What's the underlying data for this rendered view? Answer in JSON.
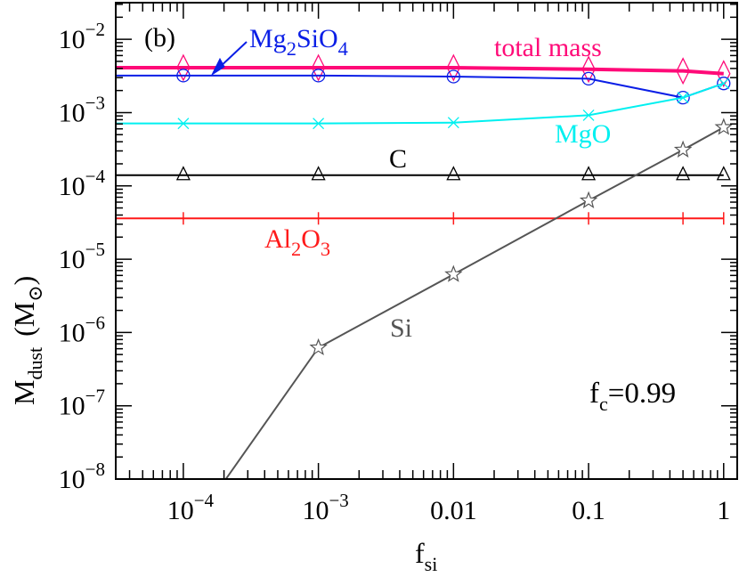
{
  "chart_data": {
    "type": "line",
    "panel_label": "(b)",
    "xlabel": {
      "main": "f",
      "sub": "si"
    },
    "ylabel": {
      "main": "M",
      "sub": "dust",
      "unit_open": "(M",
      "unit_sub": "⊙",
      "unit_close": ")"
    },
    "annotation": {
      "main": "f",
      "sub": "c",
      "rest": "=0.99"
    },
    "x_scale": "log",
    "y_scale": "log",
    "xlim": [
      3.16e-05,
      1.26
    ],
    "ylim": [
      1e-08,
      0.0316
    ],
    "grid": false,
    "x_ticks": [
      {
        "value": 0.0001,
        "base": "10",
        "exp": "−4"
      },
      {
        "value": 0.001,
        "base": "10",
        "exp": "−3"
      },
      {
        "value": 0.01,
        "base": "0.01",
        "exp": ""
      },
      {
        "value": 0.1,
        "base": "0.1",
        "exp": ""
      },
      {
        "value": 1,
        "base": "1",
        "exp": ""
      }
    ],
    "y_ticks": [
      {
        "value": 0.01,
        "base": "10",
        "exp": "−2"
      },
      {
        "value": 0.001,
        "base": "10",
        "exp": "−3"
      },
      {
        "value": 0.0001,
        "base": "10",
        "exp": "−4"
      },
      {
        "value": 1e-05,
        "base": "10",
        "exp": "−5"
      },
      {
        "value": 1e-06,
        "base": "10",
        "exp": "−6"
      },
      {
        "value": 1e-07,
        "base": "10",
        "exp": "−7"
      },
      {
        "value": 1e-08,
        "base": "10",
        "exp": "−8"
      }
    ],
    "x": [
      0.0001,
      0.001,
      0.01,
      0.1,
      0.5,
      1
    ],
    "series": [
      {
        "name": "total mass",
        "label_parts": [
          {
            "t": "total mass"
          }
        ],
        "color": "#ff0a78",
        "marker": "diamond",
        "line_width": 4,
        "values": [
          0.0041,
          0.0041,
          0.0041,
          0.0039,
          0.0037,
          0.0034
        ],
        "extend_left": true
      },
      {
        "name": "Mg2SiO4",
        "label_parts": [
          {
            "t": "Mg"
          },
          {
            "t": "2",
            "sub": true
          },
          {
            "t": "SiO"
          },
          {
            "t": "4",
            "sub": true
          }
        ],
        "color": "#0a1ee6",
        "marker": "circle",
        "line_width": 2,
        "values": [
          0.0032,
          0.0032,
          0.0031,
          0.0029,
          0.0016,
          0.0025
        ],
        "extend_left": true
      },
      {
        "name": "MgO",
        "label_parts": [
          {
            "t": "MgO"
          }
        ],
        "color": "#00f0f0",
        "marker": "cross",
        "line_width": 2,
        "values": [
          0.00071,
          0.00071,
          0.00073,
          0.00092,
          0.0016,
          0.0025
        ],
        "extend_left": true
      },
      {
        "name": "C",
        "label_parts": [
          {
            "t": "C"
          }
        ],
        "color": "#000000",
        "marker": "triangle",
        "line_width": 2,
        "values": [
          0.00014,
          0.00014,
          0.00014,
          0.00014,
          0.00014,
          0.00014
        ],
        "extend_left": true
      },
      {
        "name": "Al2O3",
        "label_parts": [
          {
            "t": "Al"
          },
          {
            "t": "2",
            "sub": true
          },
          {
            "t": "O"
          },
          {
            "t": "3",
            "sub": true
          }
        ],
        "color": "#ff1a1a",
        "marker": "vbar",
        "line_width": 2,
        "values": [
          3.6e-05,
          3.6e-05,
          3.6e-05,
          3.6e-05,
          3.6e-05,
          3.6e-05
        ],
        "extend_left": true
      },
      {
        "name": "Si",
        "label_parts": [
          {
            "t": "Si"
          }
        ],
        "color": "#555555",
        "marker": "star",
        "line_width": 2,
        "values": [
          1.5e-09,
          6.2e-07,
          6.2e-06,
          6.3e-05,
          0.00031,
          0.00063
        ],
        "extend_left": false
      }
    ]
  }
}
